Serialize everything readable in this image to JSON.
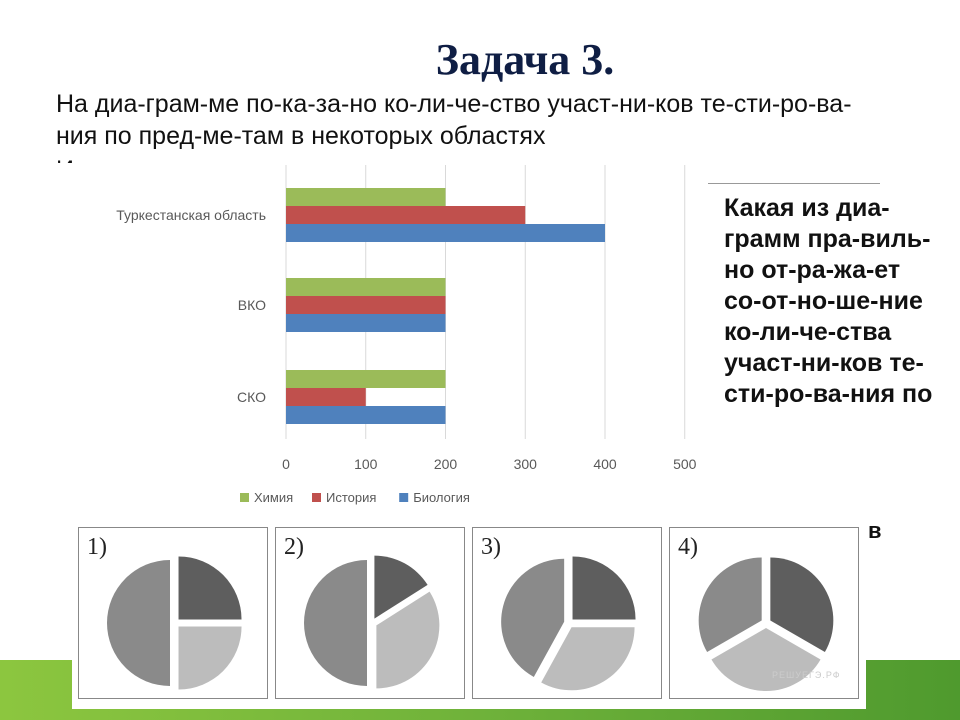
{
  "slide": {
    "title": "Задача 3.",
    "intro_text": "На диа-грам-ме по-ка-за-но ко-ли-че-ство участ-ни-ков те-сти-ро-ва-ния по пред-ме-там в некоторых областях",
    "intro_clipped": "И",
    "side_question": "Какая из диа-грамм пра-виль-но от-ра-жа-ет со-от-но-ше-ние ко-ли-че-ства участ-ни-ков те-сти-ро-ва-ния по",
    "side_tail": "в",
    "watermark": "РЕШУЕГЭ.РФ",
    "colors": {
      "title": "#0f1e44",
      "green_band": "#6fb23a"
    }
  },
  "chart_data": [
    {
      "type": "bar",
      "orientation": "horizontal",
      "categories": [
        "Туркестанская область",
        "ВКО",
        "СКО"
      ],
      "series": [
        {
          "name": "Химия",
          "color": "#9bbb59",
          "values": [
            200,
            200,
            200
          ]
        },
        {
          "name": "История",
          "color": "#c0504d",
          "values": [
            300,
            200,
            100
          ]
        },
        {
          "name": "Биология",
          "color": "#4f81bd",
          "values": [
            400,
            200,
            200
          ]
        }
      ],
      "xlim": [
        0,
        500
      ],
      "xticks": [
        0,
        100,
        200,
        300,
        400,
        500
      ],
      "grid": true,
      "legend_position": "bottom"
    },
    {
      "type": "pie",
      "label": "1)",
      "slices": [
        {
          "value": 25,
          "color": "#5e5e5e"
        },
        {
          "value": 25,
          "color": "#bcbcbc"
        },
        {
          "value": 50,
          "color": "#8a8a8a"
        }
      ]
    },
    {
      "type": "pie",
      "label": "2)",
      "slices": [
        {
          "value": 16,
          "color": "#5e5e5e"
        },
        {
          "value": 34,
          "color": "#bcbcbc"
        },
        {
          "value": 50,
          "color": "#8a8a8a"
        }
      ]
    },
    {
      "type": "pie",
      "label": "3)",
      "slices": [
        {
          "value": 25,
          "color": "#5e5e5e"
        },
        {
          "value": 33,
          "color": "#bcbcbc"
        },
        {
          "value": 42,
          "color": "#8a8a8a"
        }
      ]
    },
    {
      "type": "pie",
      "label": "4)",
      "slices": [
        {
          "value": 33.33,
          "color": "#5e5e5e"
        },
        {
          "value": 33.33,
          "color": "#bcbcbc"
        },
        {
          "value": 33.34,
          "color": "#8a8a8a"
        }
      ]
    }
  ]
}
